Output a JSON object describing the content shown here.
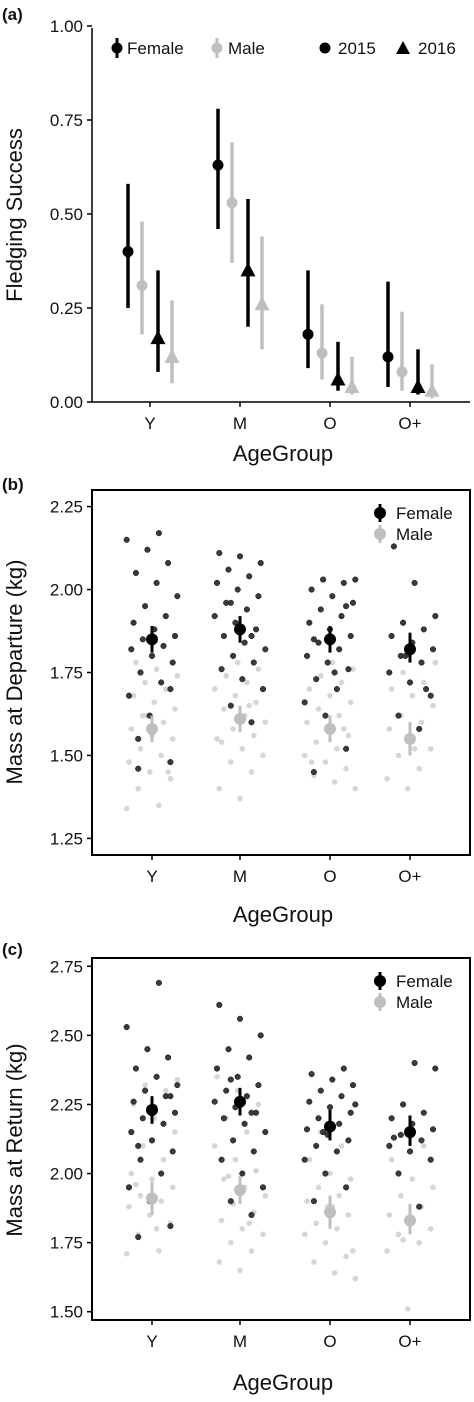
{
  "colors": {
    "female": "#000000",
    "male": "#bfbfbf",
    "female_raw": "#3a3a3a",
    "male_raw": "#d6d6d6"
  },
  "chart_data": [
    {
      "panel": "(a)",
      "type": "scatter",
      "xlabel": "AgeGroup",
      "ylabel": "Fledging Success",
      "categories": [
        "Y",
        "M",
        "O",
        "O+"
      ],
      "ylim": [
        0,
        1.0
      ],
      "yticks": [
        "0.00",
        "0.25",
        "0.50",
        "0.75",
        "1.00"
      ],
      "legend": {
        "sex": [
          "Female",
          "Male"
        ],
        "year": [
          "2015",
          "2016"
        ]
      },
      "series": [
        {
          "name": "Female",
          "year": "2015",
          "marker": "circle",
          "values": [
            0.4,
            0.63,
            0.18,
            0.12
          ],
          "lower": [
            0.25,
            0.46,
            0.09,
            0.04
          ],
          "upper": [
            0.58,
            0.78,
            0.35,
            0.32
          ]
        },
        {
          "name": "Male",
          "year": "2015",
          "marker": "circle",
          "values": [
            0.31,
            0.53,
            0.13,
            0.08
          ],
          "lower": [
            0.18,
            0.37,
            0.06,
            0.03
          ],
          "upper": [
            0.48,
            0.69,
            0.26,
            0.24
          ]
        },
        {
          "name": "Female",
          "year": "2016",
          "marker": "triangle",
          "values": [
            0.17,
            0.35,
            0.06,
            0.04
          ],
          "lower": [
            0.08,
            0.2,
            0.03,
            0.02
          ],
          "upper": [
            0.35,
            0.54,
            0.16,
            0.14
          ]
        },
        {
          "name": "Male",
          "year": "2016",
          "marker": "triangle",
          "values": [
            0.12,
            0.26,
            0.04,
            0.03
          ],
          "lower": [
            0.05,
            0.14,
            0.02,
            0.01
          ],
          "upper": [
            0.27,
            0.44,
            0.12,
            0.1
          ]
        }
      ]
    },
    {
      "panel": "(b)",
      "type": "scatter",
      "xlabel": "AgeGroup",
      "ylabel": "Mass at Departure (kg)",
      "categories": [
        "Y",
        "M",
        "O",
        "O+"
      ],
      "ylim": [
        1.2,
        2.3
      ],
      "yticks": [
        "1.25",
        "1.50",
        "1.75",
        "2.00",
        "2.25"
      ],
      "legend": {
        "sex": [
          "Female",
          "Male"
        ]
      },
      "series": [
        {
          "name": "Female",
          "values": [
            1.85,
            1.88,
            1.85,
            1.82
          ],
          "lower": [
            1.81,
            1.84,
            1.81,
            1.78
          ],
          "upper": [
            1.89,
            1.92,
            1.89,
            1.87
          ]
        },
        {
          "name": "Male",
          "values": [
            1.58,
            1.61,
            1.58,
            1.55
          ],
          "lower": [
            1.54,
            1.57,
            1.54,
            1.5
          ],
          "upper": [
            1.62,
            1.65,
            1.62,
            1.6
          ]
        }
      ],
      "raw_points": {
        "Female": [
          [
            1.46,
            1.48,
            1.62,
            1.68,
            1.72,
            1.75,
            1.78,
            1.8,
            1.82,
            1.83,
            1.85,
            1.86,
            1.88,
            1.9,
            1.92,
            1.95,
            1.98,
            2.02,
            2.05,
            2.08,
            2.12,
            2.15,
            2.17,
            1.55,
            1.7
          ],
          [
            1.6,
            1.65,
            1.7,
            1.73,
            1.76,
            1.78,
            1.8,
            1.82,
            1.84,
            1.86,
            1.88,
            1.9,
            1.92,
            1.94,
            1.96,
            1.98,
            2.0,
            2.02,
            2.04,
            2.06,
            2.08,
            2.1,
            2.11,
            1.86,
            1.96
          ],
          [
            1.45,
            1.52,
            1.62,
            1.66,
            1.7,
            1.73,
            1.76,
            1.78,
            1.8,
            1.82,
            1.84,
            1.86,
            1.88,
            1.9,
            1.92,
            1.94,
            1.96,
            1.98,
            2.0,
            2.02,
            2.03,
            2.03,
            1.75,
            1.85,
            1.95
          ],
          [
            1.58,
            1.62,
            1.68,
            1.72,
            1.75,
            1.78,
            1.8,
            1.82,
            1.84,
            1.86,
            1.88,
            1.9,
            1.92,
            2.02,
            2.13,
            1.7,
            1.8
          ]
        ],
        "Male": [
          [
            1.34,
            1.35,
            1.4,
            1.43,
            1.45,
            1.48,
            1.5,
            1.52,
            1.55,
            1.56,
            1.58,
            1.6,
            1.62,
            1.64,
            1.66,
            1.68,
            1.7,
            1.72,
            1.74,
            1.76,
            1.78,
            1.45,
            1.62
          ],
          [
            1.37,
            1.4,
            1.45,
            1.48,
            1.5,
            1.52,
            1.54,
            1.56,
            1.58,
            1.6,
            1.62,
            1.64,
            1.66,
            1.68,
            1.7,
            1.72,
            1.74,
            1.76,
            1.78,
            1.55,
            1.65
          ],
          [
            1.4,
            1.42,
            1.44,
            1.46,
            1.48,
            1.5,
            1.52,
            1.54,
            1.56,
            1.58,
            1.6,
            1.62,
            1.64,
            1.66,
            1.68,
            1.7,
            1.72,
            1.74,
            1.76,
            1.78,
            1.48,
            1.58
          ],
          [
            1.4,
            1.43,
            1.46,
            1.5,
            1.52,
            1.55,
            1.58,
            1.6,
            1.62,
            1.65,
            1.68,
            1.7,
            1.72,
            1.75,
            1.78,
            1.52
          ]
        ]
      }
    },
    {
      "panel": "(c)",
      "type": "scatter",
      "xlabel": "AgeGroup",
      "ylabel": "Mass at Return (kg)",
      "categories": [
        "Y",
        "M",
        "O",
        "O+"
      ],
      "ylim": [
        1.47,
        2.78
      ],
      "yticks": [
        "1.50",
        "1.75",
        "2.00",
        "2.25",
        "2.50",
        "2.75"
      ],
      "legend": {
        "sex": [
          "Female",
          "Male"
        ]
      },
      "series": [
        {
          "name": "Female",
          "values": [
            2.23,
            2.26,
            2.17,
            2.15
          ],
          "lower": [
            2.18,
            2.21,
            2.12,
            2.1
          ],
          "upper": [
            2.28,
            2.31,
            2.23,
            2.21
          ]
        },
        {
          "name": "Male",
          "values": [
            1.91,
            1.94,
            1.86,
            1.83
          ],
          "lower": [
            1.85,
            1.89,
            1.8,
            1.78
          ],
          "upper": [
            1.97,
            1.99,
            1.92,
            1.89
          ]
        }
      ],
      "raw_points": {
        "Female": [
          [
            1.77,
            1.81,
            1.9,
            1.95,
            2.0,
            2.05,
            2.08,
            2.12,
            2.15,
            2.18,
            2.2,
            2.22,
            2.24,
            2.26,
            2.28,
            2.3,
            2.32,
            2.35,
            2.38,
            2.42,
            2.45,
            2.53,
            2.69,
            2.1,
            2.28
          ],
          [
            1.85,
            1.9,
            1.95,
            2.0,
            2.05,
            2.08,
            2.12,
            2.15,
            2.18,
            2.2,
            2.22,
            2.24,
            2.26,
            2.28,
            2.3,
            2.32,
            2.35,
            2.38,
            2.42,
            2.45,
            2.5,
            2.56,
            2.61,
            2.22,
            2.34
          ],
          [
            1.9,
            1.95,
            2.0,
            2.05,
            2.08,
            2.1,
            2.12,
            2.14,
            2.16,
            2.18,
            2.2,
            2.22,
            2.24,
            2.26,
            2.28,
            2.3,
            2.32,
            2.34,
            2.36,
            2.38,
            2.15,
            2.25
          ],
          [
            1.88,
            2.0,
            2.05,
            2.08,
            2.1,
            2.12,
            2.14,
            2.16,
            2.18,
            2.2,
            2.22,
            2.25,
            2.38,
            2.4,
            2.13
          ]
        ],
        "Male": [
          [
            1.71,
            1.72,
            1.78,
            1.82,
            1.85,
            1.88,
            1.9,
            1.92,
            1.95,
            1.98,
            2.0,
            2.05,
            2.1,
            2.15,
            2.2,
            2.25,
            2.3,
            2.32,
            2.34,
            1.8,
            1.96
          ],
          [
            1.65,
            1.68,
            1.72,
            1.75,
            1.78,
            1.8,
            1.83,
            1.86,
            1.89,
            1.92,
            1.95,
            1.98,
            2.01,
            2.05,
            2.1,
            2.15,
            2.2,
            2.25,
            2.3,
            2.35,
            1.82,
            1.99
          ],
          [
            1.62,
            1.64,
            1.68,
            1.7,
            1.75,
            1.78,
            1.8,
            1.82,
            1.85,
            1.88,
            1.9,
            1.92,
            1.95,
            1.98,
            2.0,
            2.05,
            2.1,
            2.15,
            1.72,
            1.88
          ],
          [
            1.51,
            1.72,
            1.75,
            1.78,
            1.8,
            1.82,
            1.85,
            1.88,
            1.92,
            1.95,
            1.98,
            2.05,
            2.1,
            1.76
          ]
        ]
      }
    }
  ]
}
